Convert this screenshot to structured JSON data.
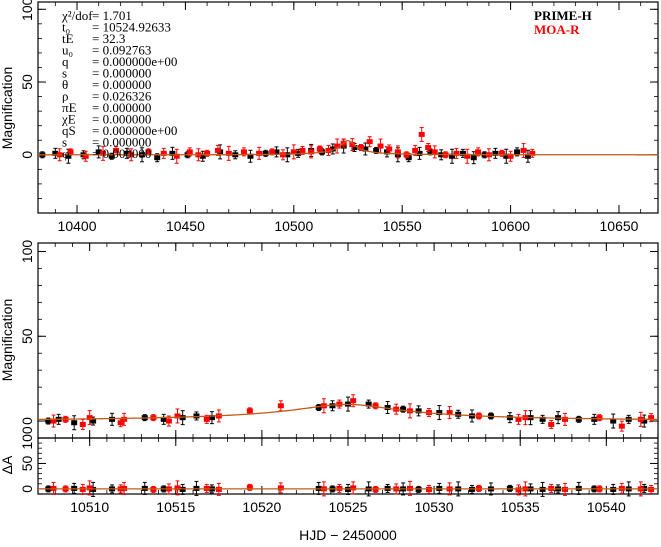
{
  "colors": {
    "prime": "#000000",
    "moa": "#ff0000",
    "model": "#c25a1a"
  },
  "chart_data": [
    {
      "type": "scatter",
      "panel": "top",
      "xlim": [
        10382,
        10668
      ],
      "ylim": [
        -40,
        105
      ],
      "xticks": [
        10400,
        10450,
        10500,
        10550,
        10600,
        10650
      ],
      "yticks": [
        0,
        50,
        100
      ],
      "ylabel": "Magnification",
      "xlabel": "",
      "parameters": [
        {
          "name": "χ²/dof",
          "value": "= 1.701"
        },
        {
          "name": "t₀",
          "value": "= 10524.92633"
        },
        {
          "name": "tE",
          "value": "= 32.3"
        },
        {
          "name": "u₀",
          "value": "= 0.092763"
        },
        {
          "name": "q",
          "value": "= 0.000000e+00"
        },
        {
          "name": "s",
          "value": "= 0.000000"
        },
        {
          "name": "θ",
          "value": "= 0.000000"
        },
        {
          "name": "ρ",
          "value": "= 0.026326"
        },
        {
          "name": "πE",
          "value": "= 0.000000"
        },
        {
          "name": "χE",
          "value": "= 0.000000"
        },
        {
          "name": "qS",
          "value": "= 0.000000e+00"
        },
        {
          "name": "s",
          "value": "= 0.000000"
        },
        {
          "name": "φ",
          "value": "= 0.000000"
        }
      ],
      "legend": [
        {
          "name": "PRIME-H",
          "color": "#000000"
        },
        {
          "name": "MOA-R",
          "color": "#ff0000"
        }
      ],
      "legend_position": "top-right",
      "series": [
        {
          "name": "PRIME-H",
          "x": [
            10384,
            10390,
            10396,
            10403,
            10410,
            10416,
            10423,
            10430,
            10437,
            10444,
            10451,
            10458,
            10466,
            10473,
            10480,
            10487,
            10492,
            10497,
            10502,
            10508,
            10513,
            10518,
            10523,
            10528,
            10533,
            10538,
            10543,
            10548,
            10553,
            10558,
            10563,
            10568,
            10573,
            10578,
            10583,
            10588,
            10593,
            10598,
            10603,
            10608
          ],
          "y": [
            0,
            1,
            -1,
            0,
            2,
            -1,
            1,
            0,
            -2,
            1,
            0,
            -1,
            2,
            0,
            -1,
            1,
            2,
            0,
            1,
            3,
            2,
            4,
            6,
            5,
            4,
            3,
            2,
            0,
            -2,
            1,
            2,
            0,
            -1,
            1,
            -2,
            0,
            1,
            -1,
            2,
            -1
          ]
        },
        {
          "name": "MOA-R",
          "x": [
            10392,
            10397,
            10404,
            10412,
            10418,
            10425,
            10433,
            10440,
            10446,
            10452,
            10456,
            10460,
            10465,
            10470,
            10477,
            10484,
            10490,
            10495,
            10500,
            10504,
            10508,
            10512,
            10516,
            10520,
            10523,
            10527,
            10531,
            10535,
            10540,
            10544,
            10548,
            10552,
            10556,
            10559,
            10562,
            10565,
            10570,
            10575,
            10580,
            10585,
            10590,
            10596,
            10600,
            10606,
            10610
          ],
          "y": [
            0,
            2,
            -1,
            1,
            3,
            0,
            2,
            1,
            -1,
            2,
            0,
            1,
            3,
            1,
            2,
            1,
            2,
            0,
            2,
            3,
            2,
            4,
            3,
            6,
            8,
            7,
            5,
            9,
            6,
            4,
            2,
            0,
            3,
            14,
            5,
            2,
            0,
            1,
            -1,
            2,
            0,
            1,
            -1,
            3,
            1
          ]
        }
      ],
      "model": {
        "t0": 10524.92633,
        "tE": 32.3,
        "u0": 0.092763
      }
    },
    {
      "type": "scatter",
      "panel": "middle",
      "xlim": [
        10507,
        10543
      ],
      "ylim": [
        -10,
        105
      ],
      "xticks": [
        10510,
        10515,
        10520,
        10525,
        10530,
        10535,
        10540
      ],
      "yticks": [
        0,
        50,
        100
      ],
      "ylabel": "Magnification",
      "xlabel": "",
      "series": [
        {
          "name": "PRIME-H",
          "x": [
            10507.6,
            10508.2,
            10509.1,
            10510.2,
            10511.3,
            10513.2,
            10514.3,
            10515.4,
            10516.2,
            10517.1,
            10523.3,
            10524.1,
            10525.0,
            10526.2,
            10527.3,
            10528.2,
            10529.1,
            10530.3,
            10531.4,
            10532.2,
            10533.3,
            10534.4,
            10535.6,
            10536.3,
            10537.2,
            10538.4,
            10539.3,
            10540.4,
            10541.3,
            10542.2
          ],
          "y": [
            0,
            1,
            -1,
            0,
            1,
            2,
            1,
            2,
            3,
            2,
            8,
            9,
            10,
            10,
            8,
            7,
            6,
            5,
            4,
            3,
            3,
            2,
            2,
            1,
            2,
            1,
            1,
            0,
            1,
            0
          ]
        },
        {
          "name": "MOA-R",
          "x": [
            10507.9,
            10508.6,
            10509.6,
            10510.0,
            10511.8,
            10512.0,
            10513.7,
            10514.6,
            10515.1,
            10516.8,
            10517.5,
            10519.3,
            10521.1,
            10523.6,
            10524.5,
            10525.3,
            10526.6,
            10527.8,
            10528.6,
            10529.7,
            10530.9,
            10532.6,
            10534.9,
            10535.3,
            10536.8,
            10537.6,
            10539.6,
            10540.9,
            10542.0,
            10542.6
          ],
          "y": [
            0,
            1,
            -2,
            2,
            -1,
            1,
            2,
            0,
            3,
            1,
            3,
            6,
            9,
            9,
            10,
            12,
            9,
            7,
            6,
            5,
            5,
            3,
            1,
            2,
            -2,
            1,
            2,
            -3,
            1,
            2
          ]
        }
      ],
      "model": {
        "t0": 10524.92633,
        "tE": 32.3,
        "u0": 0.092763
      }
    },
    {
      "type": "scatter",
      "panel": "residual",
      "xlim": [
        10507,
        10543
      ],
      "ylim": [
        -10,
        100
      ],
      "xticks": [
        10510,
        10515,
        10520,
        10525,
        10530,
        10535,
        10540
      ],
      "yticks": [
        0,
        50,
        100
      ],
      "ylabel": "ΔA",
      "xlabel": "HJD − 2450000",
      "series": [
        {
          "name": "PRIME-H",
          "x": [
            10507.6,
            10509.1,
            10510.2,
            10511.3,
            10513.2,
            10514.3,
            10515.4,
            10516.2,
            10517.1,
            10523.3,
            10524.1,
            10525.0,
            10526.2,
            10527.3,
            10528.2,
            10529.1,
            10530.3,
            10531.4,
            10532.2,
            10533.3,
            10534.4,
            10535.6,
            10536.3,
            10537.2,
            10538.4,
            10539.3,
            10540.4,
            10541.3,
            10542.2
          ],
          "y": [
            0,
            1,
            -1,
            0,
            1,
            0,
            -1,
            1,
            0,
            1,
            0,
            -1,
            0,
            1,
            0,
            -1,
            1,
            0,
            -1,
            0,
            1,
            0,
            -1,
            0,
            1,
            0,
            -1,
            0,
            1
          ]
        },
        {
          "name": "MOA-R",
          "x": [
            10507.9,
            10508.6,
            10509.6,
            10510.0,
            10511.8,
            10512.0,
            10513.7,
            10514.6,
            10515.1,
            10516.8,
            10517.5,
            10519.3,
            10521.1,
            10523.6,
            10524.5,
            10525.3,
            10526.6,
            10527.8,
            10528.6,
            10529.7,
            10530.9,
            10532.6,
            10534.9,
            10535.3,
            10536.8,
            10537.6,
            10539.6,
            10540.9,
            10542.0,
            10542.6
          ],
          "y": [
            1,
            0,
            -1,
            2,
            0,
            1,
            -1,
            0,
            2,
            1,
            -1,
            3,
            2,
            0,
            1,
            2,
            -1,
            0,
            1,
            -1,
            0,
            1,
            -2,
            0,
            1,
            -1,
            0,
            1,
            0,
            -1
          ]
        }
      ]
    }
  ]
}
